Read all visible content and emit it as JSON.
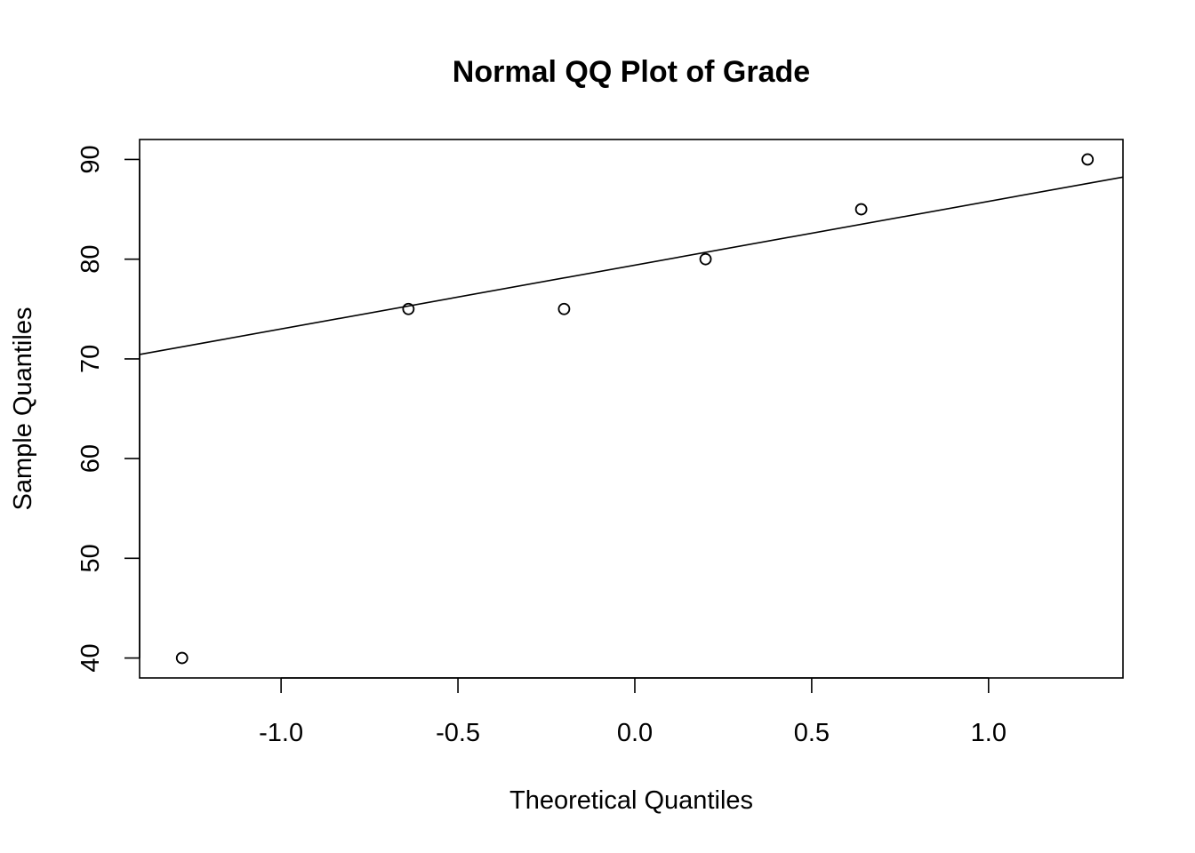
{
  "chart_data": {
    "type": "scatter",
    "title": "Normal QQ Plot of Grade",
    "xlabel": "Theoretical Quantiles",
    "ylabel": "Sample Quantiles",
    "xlim": [
      -1.4,
      1.38
    ],
    "ylim": [
      38,
      92
    ],
    "x_ticks": [
      -1.0,
      -0.5,
      0.0,
      0.5,
      1.0
    ],
    "x_tick_labels": [
      "-1.0",
      "-0.5",
      "0.0",
      "0.5",
      "1.0"
    ],
    "y_ticks": [
      40,
      50,
      60,
      70,
      80,
      90
    ],
    "y_tick_labels": [
      "40",
      "50",
      "60",
      "70",
      "80",
      "90"
    ],
    "points": [
      {
        "x": -1.28,
        "y": 40
      },
      {
        "x": -0.64,
        "y": 75
      },
      {
        "x": -0.2,
        "y": 75
      },
      {
        "x": 0.2,
        "y": 80
      },
      {
        "x": 0.64,
        "y": 85
      },
      {
        "x": 1.28,
        "y": 90
      }
    ],
    "reference_line": {
      "intercept": 79.4,
      "slope": 6.4
    },
    "grid": false,
    "legend": "none",
    "colors": {
      "ink": "#000000",
      "background": "#ffffff"
    }
  }
}
